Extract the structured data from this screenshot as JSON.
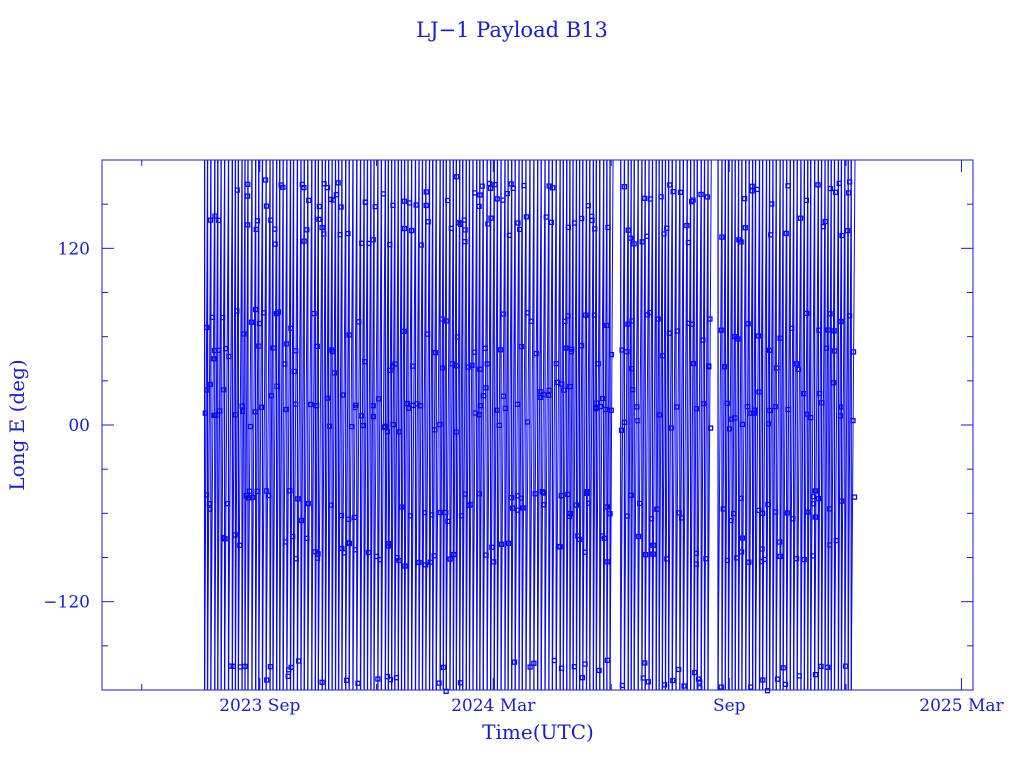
{
  "chart_data": {
    "type": "scatter",
    "title": "LJ−1 Payload B13",
    "xlabel": "Time(UTC)",
    "ylabel": "Long E (deg)",
    "ylim": [
      -180,
      180
    ],
    "xlim": [
      "2023-05-01",
      "2025-03-10"
    ],
    "yticks": [
      {
        "value": -120,
        "label": "−120"
      },
      {
        "value": 0,
        "label": "00"
      },
      {
        "value": 120,
        "label": "120"
      }
    ],
    "xticks": [
      {
        "value": "2023-09-01",
        "label": "2023 Sep"
      },
      {
        "value": "2024-03-01",
        "label": "2024 Mar"
      },
      {
        "value": "2024-09-01",
        "label": "Sep"
      },
      {
        "value": "2025-03-01",
        "label": "2025 Mar"
      }
    ],
    "data_range": {
      "start": "2023-07-20",
      "end": "2024-12-08"
    },
    "gaps": [
      {
        "start": "2024-06-04",
        "end": "2024-06-08"
      },
      {
        "start": "2024-08-18",
        "end": "2024-08-21"
      }
    ],
    "series": [
      {
        "marker": "square",
        "line": "connected",
        "wraps_every_days": 2.7,
        "band_centers_deg": [
          158,
          132,
          68,
          45,
          18,
          5,
          -55,
          -85,
          -170
        ]
      }
    ],
    "grid": false,
    "legend": "none",
    "colors": {
      "data": "#0a0af0",
      "axes": "#1a1ad8",
      "background": "#ffffff"
    }
  }
}
